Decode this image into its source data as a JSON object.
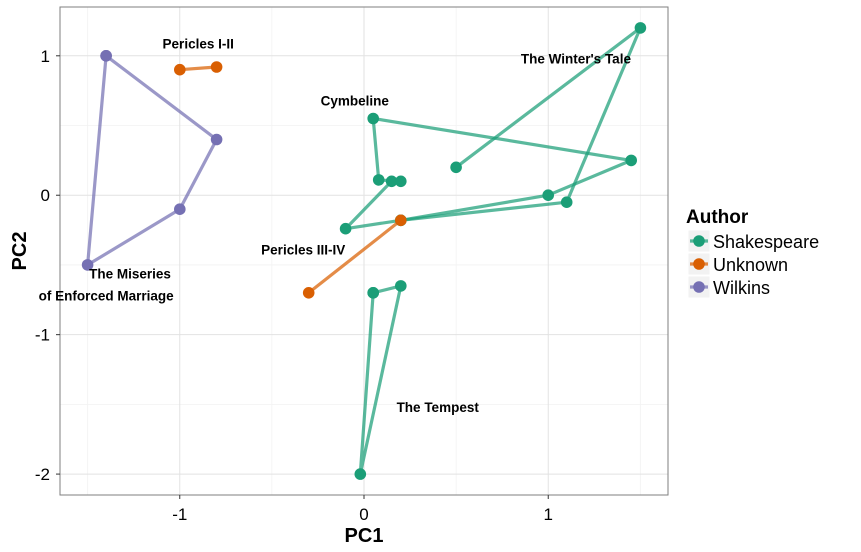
{
  "chart_data": {
    "type": "line",
    "xlabel": "PC1",
    "ylabel": "PC2",
    "xlim": [
      -1.65,
      1.65
    ],
    "ylim": [
      -2.15,
      1.35
    ],
    "x_ticks": [
      -1,
      0,
      1
    ],
    "y_ticks": [
      -2,
      -1,
      0,
      1
    ],
    "x_tick_labels": [
      "-1",
      "0",
      "1"
    ],
    "y_tick_labels": [
      "-2",
      "-1",
      "0",
      "1"
    ],
    "grid": true,
    "legend_position": "right",
    "legend": {
      "title": "Author",
      "entries": [
        {
          "label": "Shakespeare",
          "color": "#1b9e77"
        },
        {
          "label": "Unknown",
          "color": "#d95f02"
        },
        {
          "label": "Wilkins",
          "color": "#7570b3"
        }
      ]
    },
    "series": [
      {
        "group": "The Winter's Tale",
        "author": "Shakespeare",
        "color": "#1b9e77",
        "points": [
          [
            0.5,
            0.2
          ],
          [
            1.5,
            1.2
          ],
          [
            1.1,
            -0.05
          ],
          [
            0.2,
            -0.18
          ],
          [
            -0.1,
            -0.24
          ],
          [
            0.15,
            0.1
          ]
        ]
      },
      {
        "group": "Cymbeline",
        "author": "Shakespeare",
        "color": "#1b9e77",
        "points": [
          [
            0.2,
            0.1
          ],
          [
            0.08,
            0.11
          ],
          [
            0.05,
            0.55
          ],
          [
            1.45,
            0.25
          ],
          [
            1.0,
            0.0
          ],
          [
            0.2,
            -0.18
          ]
        ]
      },
      {
        "group": "The Tempest",
        "author": "Shakespeare",
        "color": "#1b9e77",
        "points": [
          [
            0.05,
            -0.7
          ],
          [
            -0.02,
            -2.0
          ],
          [
            0.2,
            -0.65
          ],
          [
            0.05,
            -0.7
          ]
        ]
      },
      {
        "group": "Pericles I-II",
        "author": "Unknown",
        "color": "#d95f02",
        "points": [
          [
            -1.0,
            0.9
          ],
          [
            -0.8,
            0.92
          ]
        ]
      },
      {
        "group": "Pericles III-IV",
        "author": "Unknown",
        "color": "#d95f02",
        "points": [
          [
            -0.3,
            -0.7
          ],
          [
            0.2,
            -0.18
          ]
        ]
      },
      {
        "group": "The Miseries of Enforced Marriage",
        "author": "Wilkins",
        "color": "#7570b3",
        "points": [
          [
            -1.4,
            1.0
          ],
          [
            -0.8,
            0.4
          ],
          [
            -1.0,
            -0.1
          ],
          [
            -1.5,
            -0.5
          ],
          [
            -1.4,
            1.0
          ]
        ]
      }
    ],
    "annotations": [
      {
        "text": "Pericles I-II",
        "x": -0.9,
        "y": 1.09
      },
      {
        "text": "The Winter's Tale",
        "x": 1.15,
        "y": 0.98
      },
      {
        "text": "Cymbeline",
        "x": -0.05,
        "y": 0.68
      },
      {
        "text": "Pericles III-IV",
        "x": -0.33,
        "y": -0.39
      },
      {
        "text": "The Miseries",
        "x": -1.27,
        "y": -0.56
      },
      {
        "text": "of Enforced Marriage",
        "x": -1.4,
        "y": -0.72
      },
      {
        "text": "The Tempest",
        "x": 0.4,
        "y": -1.52
      }
    ]
  }
}
